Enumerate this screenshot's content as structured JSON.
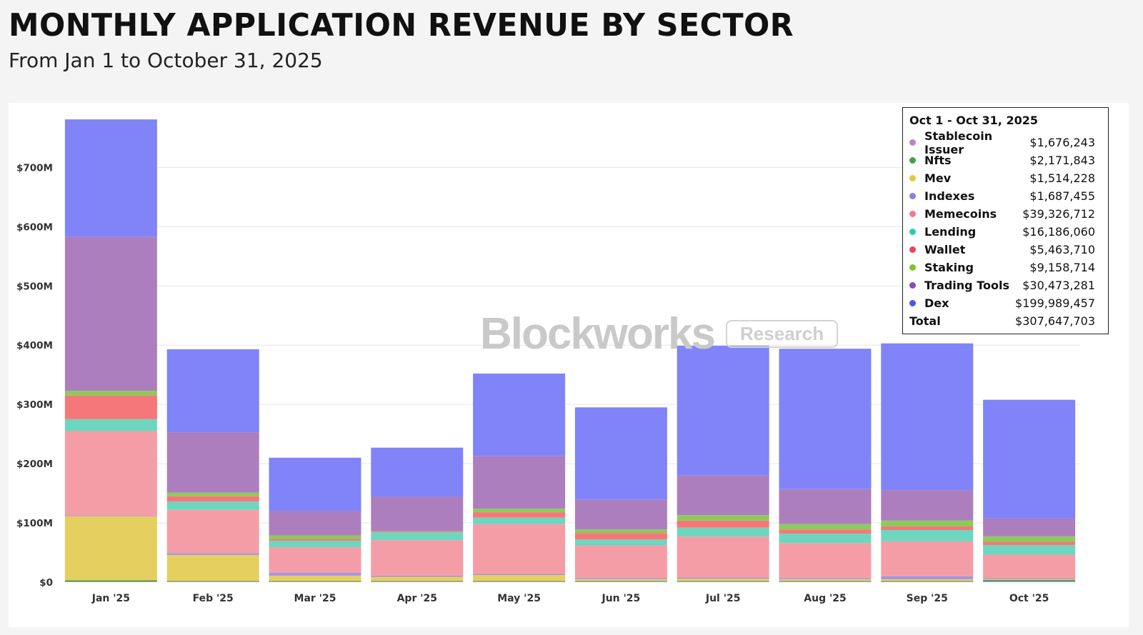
{
  "title": "MONTHLY APPLICATION REVENUE BY SECTOR",
  "subtitle": "From Jan 1 to October 31, 2025",
  "watermark": {
    "brand": "Blockworks",
    "badge": "Research"
  },
  "colors": {
    "Stablecoin Issuer": "#b388c7",
    "Nfts": "#3ea43e",
    "Mev": "#e5cf5f",
    "Indexes": "#a391e6",
    "Memecoins": "#f59da6",
    "Lending": "#6dd6bf",
    "Wallet": "#f67779",
    "Staking": "#8ccb5a",
    "Trading Tools": "#ad7ebd",
    "Dex": "#8084f8"
  },
  "legend": {
    "title": "Oct 1 - Oct 31, 2025",
    "dot_colors": [
      "#b388c7",
      "#3ea43e",
      "#e5c83a",
      "#8b7fe0",
      "#f07b8c",
      "#2ec9b0",
      "#ee4455",
      "#7cc629",
      "#8a4fae",
      "#4b55ea"
    ],
    "items": [
      {
        "name": "Stablecoin Issuer",
        "value": "$1,676,243"
      },
      {
        "name": "Nfts",
        "value": "$2,171,843"
      },
      {
        "name": "Mev",
        "value": "$1,514,228"
      },
      {
        "name": "Indexes",
        "value": "$1,687,455"
      },
      {
        "name": "Memecoins",
        "value": "$39,326,712"
      },
      {
        "name": "Lending",
        "value": "$16,186,060"
      },
      {
        "name": "Wallet",
        "value": "$5,463,710"
      },
      {
        "name": "Staking",
        "value": "$9,158,714"
      },
      {
        "name": "Trading Tools",
        "value": "$30,473,281"
      },
      {
        "name": "Dex",
        "value": "$199,989,457"
      }
    ],
    "total_label": "Total",
    "total_value": "$307,647,703"
  },
  "chart_data": {
    "type": "bar",
    "stacked": true,
    "title": "MONTHLY APPLICATION REVENUE BY SECTOR",
    "subtitle": "From Jan 1 to October 31, 2025",
    "xlabel": "",
    "ylabel": "",
    "ylim": [
      0,
      800
    ],
    "y_unit": "$M",
    "yticks": [
      0,
      100,
      200,
      300,
      400,
      500,
      600,
      700
    ],
    "ytick_labels": [
      "$0",
      "$100M",
      "$200M",
      "$300M",
      "$400M",
      "$500M",
      "$600M",
      "$700M"
    ],
    "grid": true,
    "legend_position": "top-right",
    "categories": [
      "Jan '25",
      "Feb '25",
      "Mar '25",
      "Apr '25",
      "May '25",
      "Jun '25",
      "Jul '25",
      "Aug '25",
      "Sep '25",
      "Oct '25"
    ],
    "series": [
      {
        "name": "Stablecoin Issuer",
        "values": [
          1,
          1,
          1,
          1,
          1,
          1,
          1,
          1,
          1,
          1.7
        ]
      },
      {
        "name": "Nfts",
        "values": [
          2,
          1,
          1,
          1,
          1,
          1,
          1,
          1,
          1,
          2.2
        ]
      },
      {
        "name": "Mev",
        "values": [
          108,
          44,
          9,
          7,
          10,
          3,
          4,
          3,
          3,
          1.5
        ]
      },
      {
        "name": "Indexes",
        "values": [
          1,
          3,
          5,
          2,
          2,
          2,
          2,
          2,
          5,
          1.7
        ]
      },
      {
        "name": "Memecoins",
        "values": [
          143,
          73,
          43,
          60,
          84,
          55,
          69,
          59,
          59,
          39.3
        ]
      },
      {
        "name": "Lending",
        "values": [
          20,
          14,
          11,
          13,
          11,
          10,
          15,
          16,
          19,
          16.2
        ]
      },
      {
        "name": "Wallet",
        "values": [
          40,
          9,
          3,
          1,
          9,
          11,
          12,
          7,
          6,
          5.5
        ]
      },
      {
        "name": "Staking",
        "values": [
          8,
          6,
          6,
          1,
          6,
          6,
          9,
          9,
          10,
          9.2
        ]
      },
      {
        "name": "Trading Tools",
        "values": [
          260,
          102,
          41,
          58,
          89,
          50,
          67,
          59,
          51,
          30.5
        ]
      },
      {
        "name": "Dex",
        "values": [
          198,
          140,
          90,
          83,
          139,
          156,
          219,
          237,
          248,
          200
        ]
      }
    ]
  }
}
